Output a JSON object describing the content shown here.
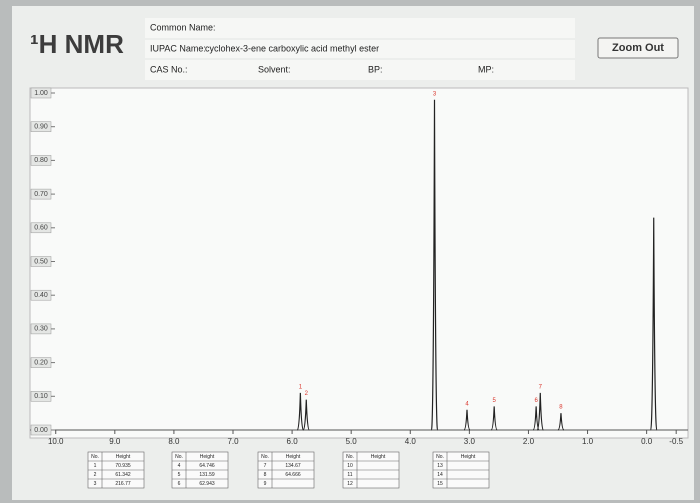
{
  "header": {
    "title": "¹H NMR",
    "common_name_label": "Common Name:",
    "iupac_label": "IUPAC Name:",
    "iupac_name": "cyclohex-3-ene carboxylic acid methyl ester",
    "cas_label": "CAS No.:",
    "solvent_label": "Solvent:",
    "bp_label": "BP:",
    "mp_label": "MP:"
  },
  "zoom_button": "Zoom Out",
  "chart_data": {
    "type": "spectrum",
    "color": "#222222",
    "label_color": "#d9342b",
    "x": [
      5.86,
      5.76,
      3.59,
      3.04,
      2.58,
      1.87,
      1.8,
      1.45,
      -0.12
    ],
    "values": [
      0.11,
      0.09,
      0.98,
      0.06,
      0.07,
      0.07,
      0.11,
      0.05,
      0.63
    ],
    "peak_labels": [
      "1",
      "2",
      "3",
      "4",
      "5",
      "6",
      "7",
      "8",
      null
    ],
    "xlim": [
      10.3,
      -0.7
    ],
    "ylim": [
      0,
      1
    ],
    "xticks": [
      {
        "value": 10,
        "label": "10.0"
      },
      {
        "value": 9,
        "label": "9.0"
      },
      {
        "value": 8,
        "label": "8.0"
      },
      {
        "value": 7,
        "label": "7.0"
      },
      {
        "value": 6,
        "label": "6.0"
      },
      {
        "value": 5,
        "label": "5.0"
      },
      {
        "value": 4,
        "label": "4.0"
      },
      {
        "value": 3,
        "label": "3.0"
      },
      {
        "value": 2,
        "label": "2.0"
      },
      {
        "value": 1,
        "label": "1.0"
      },
      {
        "value": 0,
        "label": "0.0"
      },
      -0.5
    ],
    "yticks": [
      {
        "value": 0,
        "label": "0.00"
      },
      {
        "value": 0.1,
        "label": "0.10"
      },
      {
        "value": 0.2,
        "label": "0.20"
      },
      {
        "value": 0.3,
        "label": "0.30"
      },
      {
        "value": 0.4,
        "label": "0.40"
      },
      {
        "value": 0.5,
        "label": "0.50"
      },
      {
        "value": 0.6,
        "label": "0.60"
      },
      {
        "value": 0.7,
        "label": "0.70"
      },
      {
        "value": 0.8,
        "label": "0.80"
      },
      {
        "value": 0.9,
        "label": "0.90"
      },
      {
        "value": 1,
        "label": "1.00"
      }
    ]
  },
  "tables": [
    {
      "columns": [
        "No.",
        "Height"
      ],
      "rows": [
        [
          "1",
          "70.935"
        ],
        [
          "2",
          "61.342"
        ],
        [
          "3",
          "216.77"
        ]
      ]
    },
    {
      "columns": [
        "No.",
        "Height"
      ],
      "rows": [
        [
          "4",
          "64.746"
        ],
        [
          "5",
          "131.59"
        ],
        [
          "6",
          "62.943"
        ]
      ]
    },
    {
      "columns": [
        "No.",
        "Height"
      ],
      "rows": [
        [
          "7",
          "134.67"
        ],
        [
          "8",
          "64.666"
        ],
        [
          "9"
        ]
      ]
    },
    {
      "columns": [
        "No.",
        "Height"
      ],
      "rows": [
        [
          "10"
        ],
        [
          "11"
        ],
        [
          "12"
        ]
      ]
    },
    {
      "columns": [
        "No.",
        "Height"
      ],
      "rows": [
        [
          "13"
        ],
        [
          "14"
        ],
        [
          "15"
        ]
      ]
    }
  ]
}
